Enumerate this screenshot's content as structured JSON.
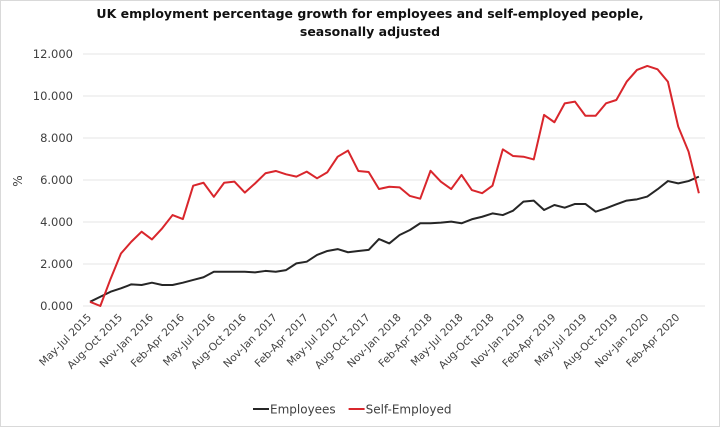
{
  "chart_data": {
    "type": "line",
    "title_line1": "UK employment percentage growth for employees and self-employed people,",
    "title_line2": "seasonally adjusted",
    "ylabel": "%",
    "xlabel": "",
    "ylim": [
      0,
      12
    ],
    "yticks": [
      "0.000",
      "2.000",
      "4.000",
      "6.000",
      "8.000",
      "10.000",
      "12.000"
    ],
    "grid": true,
    "legend_position": "bottom",
    "x_tick_labels": [
      "May-Jul 2015",
      "Aug-Oct 2015",
      "Nov-Jan 2016",
      "Feb-Apr 2016",
      "May-Jul 2016",
      "Aug-Oct 2016",
      "Nov-Jan 2017",
      "Feb-Apr 2017",
      "May-Jul 2017",
      "Aug-Oct 2017",
      "Nov-Jan 2018",
      "Feb-Apr 2018",
      "May-Jul 2018",
      "Aug-Oct 2018",
      "Nov-Jan 2019",
      "Feb-Apr 2019",
      "May-Jul 2019",
      "Aug-Oct 2019",
      "Nov-Jan 2020",
      "Feb-Apr 2020"
    ],
    "series": [
      {
        "name": "Employees",
        "color": "#262626",
        "values": [
          0.2,
          0.44,
          0.68,
          0.84,
          1.03,
          1.0,
          1.11,
          1.0,
          1.0,
          1.11,
          1.24,
          1.37,
          1.63,
          1.63,
          1.63,
          1.63,
          1.6,
          1.67,
          1.63,
          1.71,
          2.03,
          2.11,
          2.43,
          2.62,
          2.71,
          2.56,
          2.62,
          2.67,
          3.19,
          2.98,
          3.38,
          3.62,
          3.94,
          3.94,
          3.97,
          4.02,
          3.94,
          4.13,
          4.25,
          4.41,
          4.33,
          4.54,
          4.97,
          5.02,
          4.57,
          4.81,
          4.68,
          4.86,
          4.86,
          4.49,
          4.65,
          4.84,
          5.02,
          5.08,
          5.21,
          5.56,
          5.95,
          5.84,
          5.95,
          6.16
        ]
      },
      {
        "name": "Self-Employed",
        "color": "#d9262c",
        "values": [
          0.2,
          0.0,
          1.3,
          2.5,
          3.06,
          3.54,
          3.17,
          3.7,
          4.33,
          4.14,
          5.73,
          5.87,
          5.2,
          5.87,
          5.92,
          5.4,
          5.84,
          6.32,
          6.43,
          6.27,
          6.16,
          6.4,
          6.08,
          6.37,
          7.11,
          7.4,
          6.43,
          6.38,
          5.57,
          5.68,
          5.65,
          5.24,
          5.11,
          6.44,
          5.92,
          5.57,
          6.24,
          5.52,
          5.37,
          5.73,
          7.46,
          7.14,
          7.11,
          6.98,
          9.1,
          8.75,
          9.65,
          9.73,
          9.06,
          9.06,
          9.65,
          9.81,
          10.68,
          11.24,
          11.43,
          11.27,
          10.68,
          8.54,
          7.35,
          5.37
        ]
      }
    ]
  }
}
